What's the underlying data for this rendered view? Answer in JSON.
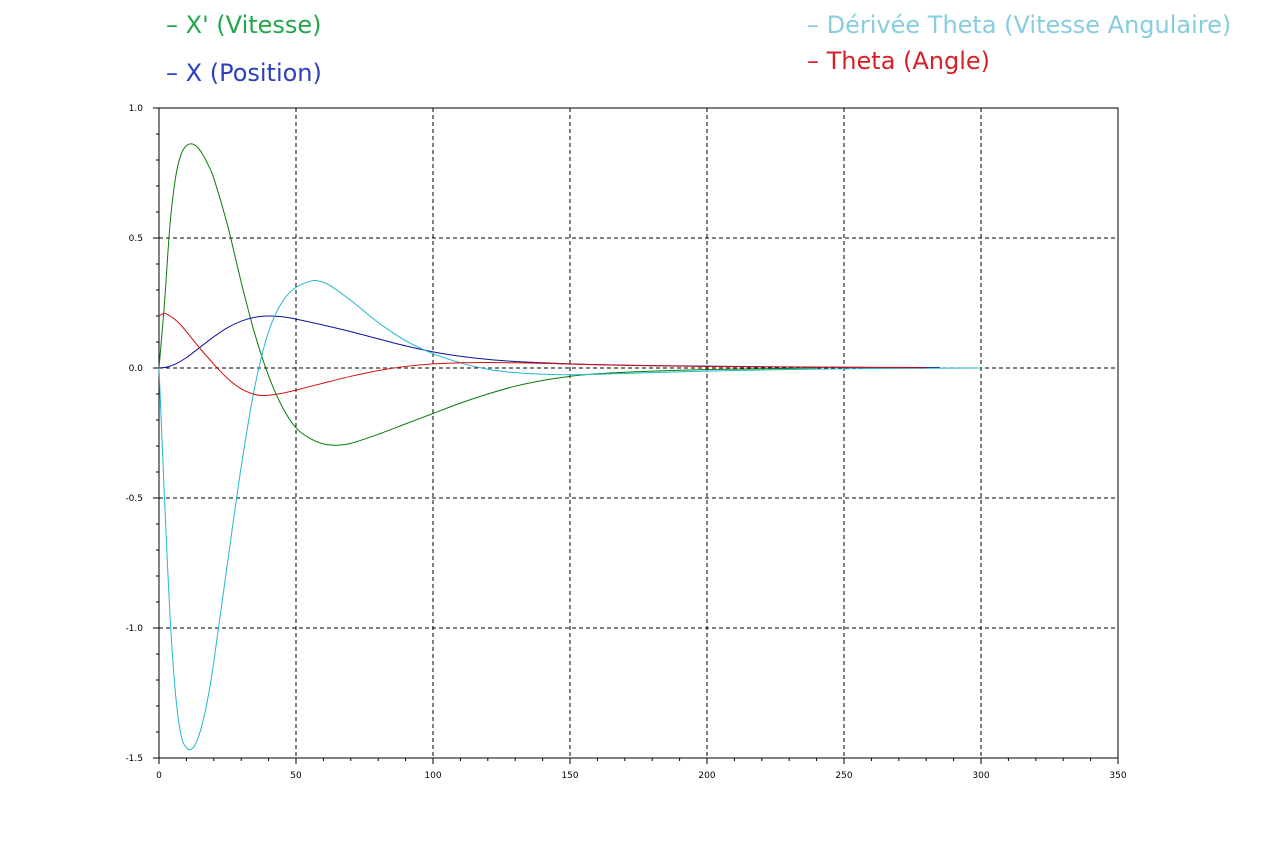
{
  "legend": [
    {
      "label": "X' (Vitesse)",
      "color": "#22a64a",
      "swatch": "–"
    },
    {
      "label": "X (Position)",
      "color": "#2b3fbf",
      "swatch": "–"
    },
    {
      "label": "Dérivée Theta (Vitesse Angulaire)",
      "color": "#86cde0",
      "swatch": "–"
    },
    {
      "label": "Theta (Angle)",
      "color": "#d81f26",
      "swatch": "–"
    }
  ],
  "chart_data": {
    "type": "line",
    "xlim": [
      0,
      350
    ],
    "ylim": [
      -1.5,
      1.0
    ],
    "x_ticks": [
      0,
      50,
      100,
      150,
      200,
      250,
      300,
      350
    ],
    "x_tick_labels": [
      "0",
      "50",
      "100",
      "150",
      "200",
      "250",
      "300",
      "350"
    ],
    "y_ticks": [
      -1.5,
      -1.0,
      -0.5,
      0.0,
      0.5,
      1.0
    ],
    "y_tick_labels": [
      "-1.5",
      "-1.0",
      "-0.5",
      "0.0",
      "0.5",
      "1.0"
    ],
    "grid": true,
    "legend_position": "top",
    "series": [
      {
        "name": "X' (Vitesse)",
        "color": "#0a7a0a",
        "x": [
          0,
          2,
          4,
          6,
          8,
          10,
          12,
          14,
          16,
          18,
          20,
          25,
          30,
          35,
          40,
          45,
          50,
          55,
          60,
          65,
          70,
          80,
          90,
          100,
          110,
          120,
          130,
          140,
          150,
          160,
          180,
          200,
          220,
          240
        ],
        "y": [
          0,
          0.25,
          0.55,
          0.73,
          0.82,
          0.855,
          0.862,
          0.85,
          0.82,
          0.78,
          0.73,
          0.55,
          0.33,
          0.13,
          -0.03,
          -0.15,
          -0.23,
          -0.27,
          -0.292,
          -0.297,
          -0.29,
          -0.255,
          -0.215,
          -0.175,
          -0.135,
          -0.1,
          -0.07,
          -0.048,
          -0.032,
          -0.022,
          -0.012,
          -0.006,
          -0.003,
          0
        ]
      },
      {
        "name": "X (Position)",
        "color": "#1010a0",
        "x": [
          0,
          3,
          6,
          10,
          15,
          20,
          25,
          30,
          35,
          40,
          45,
          50,
          60,
          70,
          80,
          90,
          100,
          110,
          120,
          130,
          140,
          150,
          160,
          175,
          190,
          200,
          220,
          250,
          285
        ],
        "y": [
          0,
          0.004,
          0.015,
          0.04,
          0.08,
          0.12,
          0.155,
          0.18,
          0.195,
          0.2,
          0.197,
          0.188,
          0.165,
          0.14,
          0.112,
          0.085,
          0.062,
          0.045,
          0.033,
          0.025,
          0.02,
          0.016,
          0.013,
          0.01,
          0.008,
          0.007,
          0.005,
          0.003,
          0.002
        ]
      },
      {
        "name": "Dérivée Theta (Vitesse Angulaire)",
        "color": "#22b8d0",
        "x": [
          0,
          1,
          2,
          4,
          6,
          8,
          10,
          12,
          14,
          16,
          18,
          20,
          25,
          30,
          35,
          40,
          45,
          50,
          55,
          58,
          62,
          70,
          80,
          90,
          100,
          110,
          120,
          130,
          140,
          150,
          160,
          180,
          200,
          230,
          260,
          300
        ],
        "y": [
          0,
          -0.25,
          -0.5,
          -0.95,
          -1.25,
          -1.41,
          -1.46,
          -1.465,
          -1.43,
          -1.36,
          -1.26,
          -1.13,
          -0.75,
          -0.38,
          -0.07,
          0.14,
          0.255,
          0.31,
          0.333,
          0.335,
          0.32,
          0.26,
          0.175,
          0.105,
          0.055,
          0.02,
          -0.005,
          -0.018,
          -0.024,
          -0.026,
          -0.024,
          -0.018,
          -0.012,
          -0.006,
          -0.002,
          0
        ]
      },
      {
        "name": "Theta (Angle)",
        "color": "#d01010",
        "x": [
          0,
          2,
          4,
          6,
          8,
          10,
          15,
          20,
          25,
          30,
          35,
          38,
          40,
          45,
          50,
          60,
          70,
          80,
          90,
          100,
          110,
          120,
          130,
          140,
          150,
          170,
          200,
          240,
          280
        ],
        "y": [
          0.2,
          0.21,
          0.2,
          0.185,
          0.165,
          0.14,
          0.075,
          0.015,
          -0.04,
          -0.08,
          -0.102,
          -0.106,
          -0.105,
          -0.097,
          -0.085,
          -0.058,
          -0.032,
          -0.01,
          0.006,
          0.016,
          0.02,
          0.021,
          0.02,
          0.018,
          0.015,
          0.01,
          0.006,
          0.003,
          0.001
        ]
      }
    ]
  }
}
